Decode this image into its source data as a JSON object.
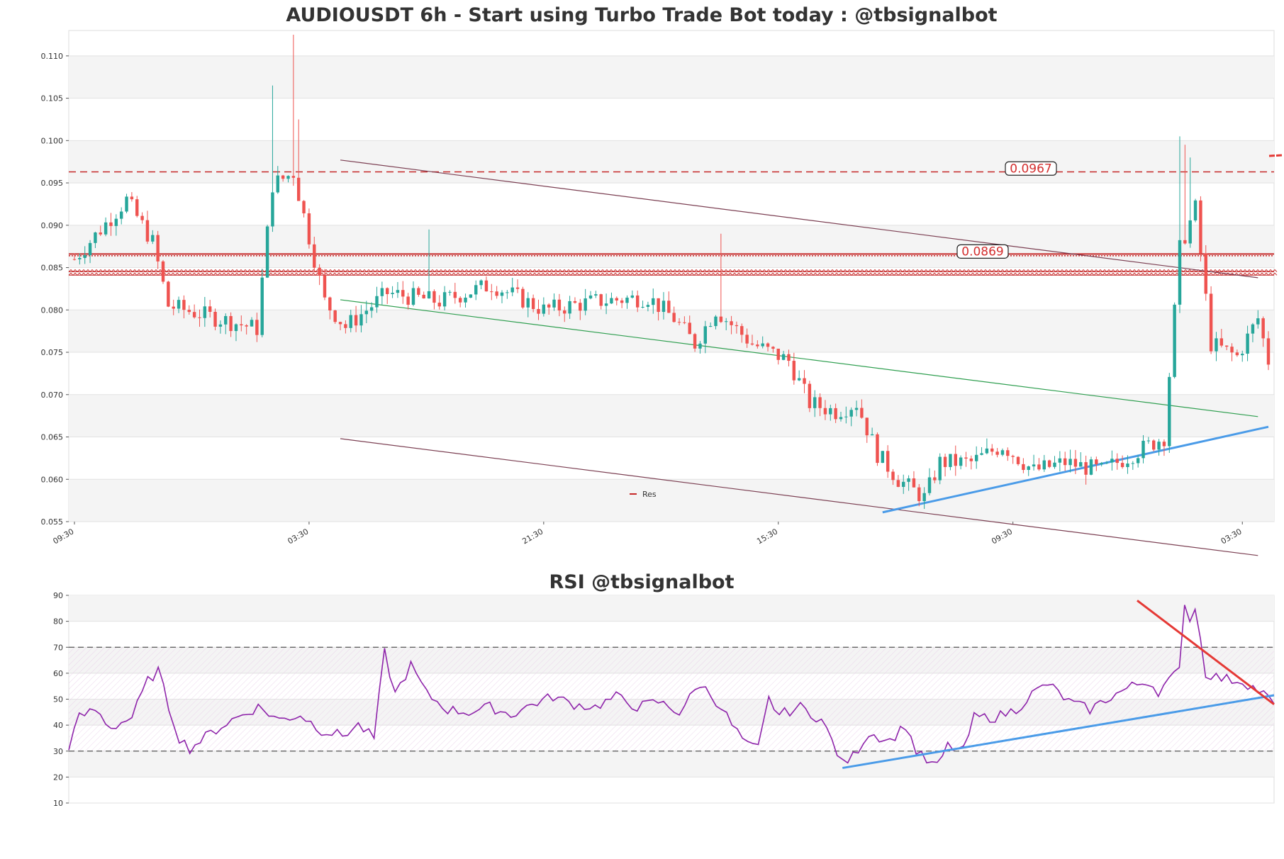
{
  "chart_data": [
    {
      "type": "candlestick",
      "title": "AUDIOUSDT 6h - Start using Turbo Trade Bot today : @tbsignalbot",
      "ylim": [
        0.055,
        0.113
      ],
      "y_ticks": [
        "0.055",
        "0.060",
        "0.065",
        "0.070",
        "0.075",
        "0.080",
        "0.085",
        "0.090",
        "0.095",
        "0.100",
        "0.105",
        "0.110"
      ],
      "x_ticks": [
        "09:30",
        "03:30",
        "21:30",
        "15:30",
        "09:30",
        "03:30"
      ],
      "n_candles": 230,
      "grid": true,
      "alternating_bands": true,
      "colors": {
        "up": "#26a69a",
        "down": "#ef5350",
        "resistance": "#c62828",
        "channel": "#7b3f52",
        "midline": "#2e9e4f",
        "trend": "#4a9be8"
      },
      "legend": {
        "entries": [
          "Res"
        ],
        "placement": "bottom-center"
      },
      "resistance_labels": [
        "0.0967",
        "0.0869"
      ],
      "levels": [
        {
          "value": 0.0963,
          "style": "dashed"
        },
        {
          "value": 0.0866,
          "style": "solid"
        },
        {
          "value": 0.0864,
          "style": "dotted"
        },
        {
          "value": 0.0845,
          "style": "zigzag"
        },
        {
          "value": 0.0841,
          "style": "zigzag"
        }
      ],
      "trendlines": [
        {
          "name": "channel_top",
          "from": [
            51,
            0.0977
          ],
          "to": [
            227,
            0.0838
          ]
        },
        {
          "name": "channel_mid",
          "from": [
            51,
            0.0812
          ],
          "to": [
            227,
            0.0674
          ]
        },
        {
          "name": "channel_bottom",
          "from": [
            51,
            0.0648
          ],
          "to": [
            227,
            0.051
          ]
        },
        {
          "name": "support",
          "from": [
            155,
            0.0561
          ],
          "to": [
            229,
            0.0662
          ]
        }
      ],
      "key_points": [
        [
          0,
          0.086
        ],
        [
          10,
          0.093
        ],
        [
          15,
          0.088
        ],
        [
          18,
          0.0805
        ],
        [
          35,
          0.0778
        ],
        [
          38,
          0.0948
        ],
        [
          42,
          0.0962
        ],
        [
          48,
          0.081
        ],
        [
          52,
          0.078
        ],
        [
          60,
          0.082
        ],
        [
          70,
          0.081
        ],
        [
          80,
          0.083
        ],
        [
          90,
          0.08
        ],
        [
          100,
          0.081
        ],
        [
          110,
          0.0815
        ],
        [
          115,
          0.079
        ],
        [
          119,
          0.076
        ],
        [
          123,
          0.08
        ],
        [
          130,
          0.076
        ],
        [
          137,
          0.074
        ],
        [
          141,
          0.069
        ],
        [
          146,
          0.068
        ],
        [
          150,
          0.069
        ],
        [
          154,
          0.063
        ],
        [
          158,
          0.06
        ],
        [
          163,
          0.0578
        ],
        [
          166,
          0.062
        ],
        [
          172,
          0.062
        ],
        [
          178,
          0.064
        ],
        [
          184,
          0.061
        ],
        [
          190,
          0.062
        ],
        [
          197,
          0.061
        ],
        [
          203,
          0.063
        ],
        [
          209,
          0.065
        ],
        [
          212,
          0.0872
        ],
        [
          215,
          0.092
        ],
        [
          218,
          0.076
        ],
        [
          223,
          0.0745
        ],
        [
          227,
          0.079
        ],
        [
          229,
          0.074
        ]
      ]
    },
    {
      "type": "line",
      "title": "RSI @tbsignalbot",
      "ylim": [
        10,
        90
      ],
      "y_ticks": [
        "10",
        "20",
        "30",
        "40",
        "50",
        "60",
        "70",
        "80",
        "90"
      ],
      "n_points": 230,
      "reference_lines": [
        30,
        70
      ],
      "colors": {
        "rsi": "#8e24aa",
        "support": "#4a9be8",
        "resistance": "#e53935",
        "reference": "#555555"
      },
      "trendlines": [
        {
          "name": "support",
          "from": [
            147,
            23.5
          ],
          "to": [
            229,
            51.5
          ]
        },
        {
          "name": "resistance",
          "from": [
            203,
            88
          ],
          "to": [
            229,
            48
          ]
        }
      ],
      "key_points": [
        [
          0,
          32
        ],
        [
          2,
          43
        ],
        [
          5,
          46
        ],
        [
          8,
          39
        ],
        [
          12,
          43
        ],
        [
          15,
          57
        ],
        [
          17,
          61
        ],
        [
          19,
          47
        ],
        [
          21,
          35
        ],
        [
          23,
          31
        ],
        [
          27,
          37
        ],
        [
          31,
          42
        ],
        [
          36,
          47
        ],
        [
          40,
          42
        ],
        [
          44,
          44
        ],
        [
          48,
          38
        ],
        [
          52,
          36
        ],
        [
          55,
          40
        ],
        [
          58,
          35
        ],
        [
          60,
          68
        ],
        [
          62,
          52
        ],
        [
          65,
          63
        ],
        [
          68,
          52
        ],
        [
          72,
          46
        ],
        [
          76,
          45
        ],
        [
          80,
          47
        ],
        [
          84,
          44
        ],
        [
          88,
          48
        ],
        [
          92,
          51
        ],
        [
          96,
          48
        ],
        [
          100,
          47
        ],
        [
          104,
          51
        ],
        [
          108,
          47
        ],
        [
          112,
          49
        ],
        [
          116,
          45
        ],
        [
          120,
          56
        ],
        [
          124,
          47
        ],
        [
          126,
          40
        ],
        [
          129,
          32
        ],
        [
          131,
          31
        ],
        [
          133,
          50
        ],
        [
          135,
          44
        ],
        [
          139,
          47
        ],
        [
          143,
          42
        ],
        [
          145,
          34
        ],
        [
          147,
          25
        ],
        [
          149,
          28
        ],
        [
          152,
          37
        ],
        [
          156,
          34
        ],
        [
          159,
          40
        ],
        [
          161,
          30
        ],
        [
          163,
          26
        ],
        [
          165,
          24
        ],
        [
          167,
          32
        ],
        [
          170,
          30
        ],
        [
          172,
          43
        ],
        [
          176,
          43
        ],
        [
          180,
          46
        ],
        [
          183,
          52
        ],
        [
          186,
          56
        ],
        [
          190,
          49
        ],
        [
          194,
          46
        ],
        [
          198,
          51
        ],
        [
          202,
          55
        ],
        [
          205,
          57
        ],
        [
          207,
          53
        ],
        [
          209,
          57
        ],
        [
          211,
          61
        ],
        [
          212,
          88
        ],
        [
          213,
          80
        ],
        [
          214,
          86
        ],
        [
          216,
          60
        ],
        [
          219,
          58
        ],
        [
          223,
          57
        ],
        [
          227,
          52
        ],
        [
          229,
          48
        ]
      ]
    }
  ]
}
